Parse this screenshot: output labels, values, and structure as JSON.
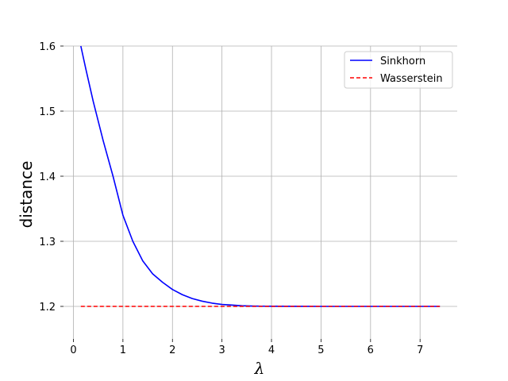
{
  "chart_data": {
    "type": "line",
    "xlabel": "λ",
    "ylabel": "distance",
    "xlim": [
      -0.2,
      7.75
    ],
    "ylim": [
      1.15,
      1.6
    ],
    "xticks": [
      0,
      1,
      2,
      3,
      4,
      5,
      6,
      7
    ],
    "yticks": [
      1.2,
      1.3,
      1.4,
      1.5,
      1.6
    ],
    "ytick_labels": [
      "1.2",
      "1.3",
      "1.4",
      "1.5",
      "1.6"
    ],
    "grid": true,
    "legend_position": "top-right",
    "series": [
      {
        "name": "Sinkhorn",
        "color": "#0000ff",
        "style": "solid",
        "x": [
          0.15,
          0.25,
          0.4,
          0.6,
          0.8,
          1.0,
          1.2,
          1.4,
          1.6,
          1.8,
          2.0,
          2.2,
          2.4,
          2.6,
          2.8,
          3.0,
          3.2,
          3.4,
          3.6,
          3.8,
          4.0,
          4.5,
          5.0,
          5.5,
          6.0,
          6.5,
          7.0,
          7.4
        ],
        "y": [
          1.6,
          1.565,
          1.515,
          1.455,
          1.4,
          1.34,
          1.3,
          1.27,
          1.25,
          1.237,
          1.226,
          1.218,
          1.212,
          1.208,
          1.205,
          1.203,
          1.202,
          1.201,
          1.2005,
          1.2003,
          1.2002,
          1.2001,
          1.2,
          1.2,
          1.2,
          1.2,
          1.2,
          1.2
        ]
      },
      {
        "name": "Wasserstein",
        "color": "#ff0000",
        "style": "dashed",
        "x": [
          0.15,
          7.4
        ],
        "y": [
          1.2,
          1.2
        ]
      }
    ]
  }
}
